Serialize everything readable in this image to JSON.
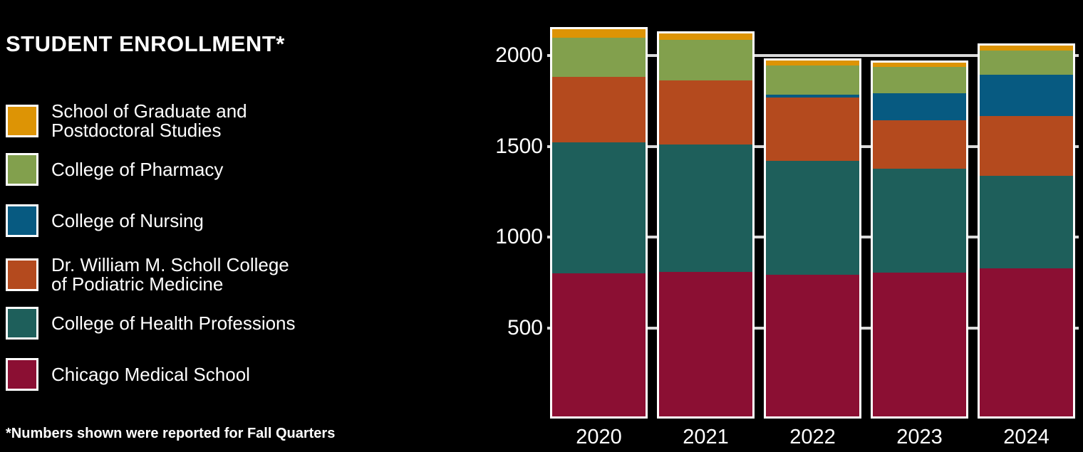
{
  "title": "STUDENT ENROLLMENT*",
  "footnote": "*Numbers shown were reported for Fall Quarters",
  "colors": {
    "background": "#000000",
    "text": "#ffffff",
    "gridline": "#d9d9d9",
    "bar_border": "#ffffff"
  },
  "legend": [
    {
      "id": "graduate-postdoctoral",
      "lines": [
        "School of Graduate and",
        "Postdoctoral Studies"
      ],
      "color": "#dd9405"
    },
    {
      "id": "pharmacy",
      "lines": [
        "College of Pharmacy"
      ],
      "color": "#82a04d"
    },
    {
      "id": "nursing",
      "lines": [
        "College of Nursing"
      ],
      "color": "#075a81"
    },
    {
      "id": "scholl-podiatric",
      "lines": [
        "Dr. William M. Scholl College",
        "of Podiatric Medicine"
      ],
      "color": "#b44a1e"
    },
    {
      "id": "health-professions",
      "lines": [
        "College of Health Professions"
      ],
      "color": "#1e5f5b"
    },
    {
      "id": "chicago-medical",
      "lines": [
        "Chicago Medical School"
      ],
      "color": "#8b0f33"
    }
  ],
  "chart_data": {
    "type": "bar",
    "stacked": true,
    "title": "STUDENT ENROLLMENT*",
    "categories": [
      "2020",
      "2021",
      "2022",
      "2023",
      "2024"
    ],
    "series": [
      {
        "name": "Chicago Medical School",
        "color": "#8b0f33",
        "values": [
          788,
          796,
          780,
          792,
          816
        ]
      },
      {
        "name": "College of Health Professions",
        "color": "#1e5f5b",
        "values": [
          722,
          701,
          628,
          573,
          510
        ]
      },
      {
        "name": "Dr. William M. Scholl College of Podiatric Medicine",
        "color": "#b44a1e",
        "values": [
          359,
          355,
          350,
          267,
          329
        ]
      },
      {
        "name": "College of Nursing",
        "color": "#075a81",
        "values": [
          0,
          0,
          16,
          150,
          228
        ]
      },
      {
        "name": "College of Pharmacy",
        "color": "#82a04d",
        "values": [
          219,
          223,
          158,
          144,
          131
        ]
      },
      {
        "name": "School of Graduate and Postdoctoral Studies",
        "color": "#dd9405",
        "values": [
          46,
          35,
          29,
          23,
          31
        ]
      }
    ],
    "totals": [
      2134,
      2110,
      1961,
      1949,
      2045
    ],
    "y_axis": {
      "ticks": [
        500,
        1000,
        1500,
        2000
      ],
      "range": [
        0,
        2160
      ],
      "gridlines": true
    },
    "x_axis": {
      "label": "",
      "note": "Fall Quarters"
    },
    "legend_position": "left",
    "stacking_order_bottom_to_top": [
      "Chicago Medical School",
      "College of Health Professions",
      "Dr. William M. Scholl College of Podiatric Medicine",
      "College of Nursing",
      "College of Pharmacy",
      "School of Graduate and Postdoctoral Studies"
    ]
  }
}
